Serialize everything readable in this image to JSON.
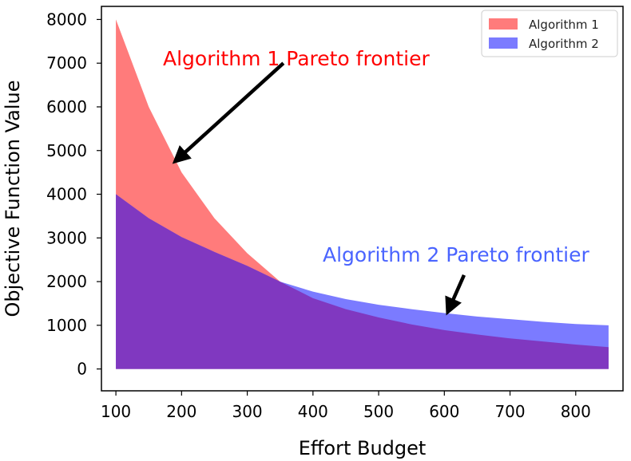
{
  "chart_data": {
    "type": "area",
    "title": "",
    "xlabel": "Effort Budget",
    "ylabel": "Objective Function Value",
    "xlim": [
      78,
      872
    ],
    "ylim": [
      -500,
      8300
    ],
    "xticks": [
      100,
      200,
      300,
      400,
      500,
      600,
      700,
      800
    ],
    "yticks": [
      0,
      1000,
      2000,
      3000,
      4000,
      5000,
      6000,
      7000,
      8000
    ],
    "grid": false,
    "legend_position": "top-right",
    "x": [
      100,
      150,
      200,
      250,
      300,
      350,
      400,
      450,
      500,
      550,
      600,
      650,
      700,
      750,
      800,
      850
    ],
    "series": [
      {
        "name": "Algorithm 1",
        "color": "#ff7b7b",
        "values": [
          8000,
          6000,
          4500,
          3450,
          2650,
          2000,
          1620,
          1370,
          1180,
          1020,
          890,
          790,
          700,
          630,
          560,
          500
        ]
      },
      {
        "name": "Algorithm 2",
        "color": "#7b7bff",
        "values": [
          4000,
          3450,
          3020,
          2680,
          2360,
          2000,
          1770,
          1600,
          1470,
          1370,
          1280,
          1200,
          1140,
          1080,
          1030,
          1000
        ]
      }
    ],
    "overlap_color": "#8038c0",
    "annotations": [
      {
        "text": "Algorithm 1 Pareto frontier",
        "color": "#ff0000",
        "arrow_from": [
          355,
          7000
        ],
        "arrow_to": [
          190,
          4750
        ]
      },
      {
        "text": "Algorithm 2 Pareto frontier",
        "color": "#4a64ff",
        "arrow_from": [
          630,
          2150
        ],
        "arrow_to": [
          605,
          1300
        ]
      }
    ]
  }
}
